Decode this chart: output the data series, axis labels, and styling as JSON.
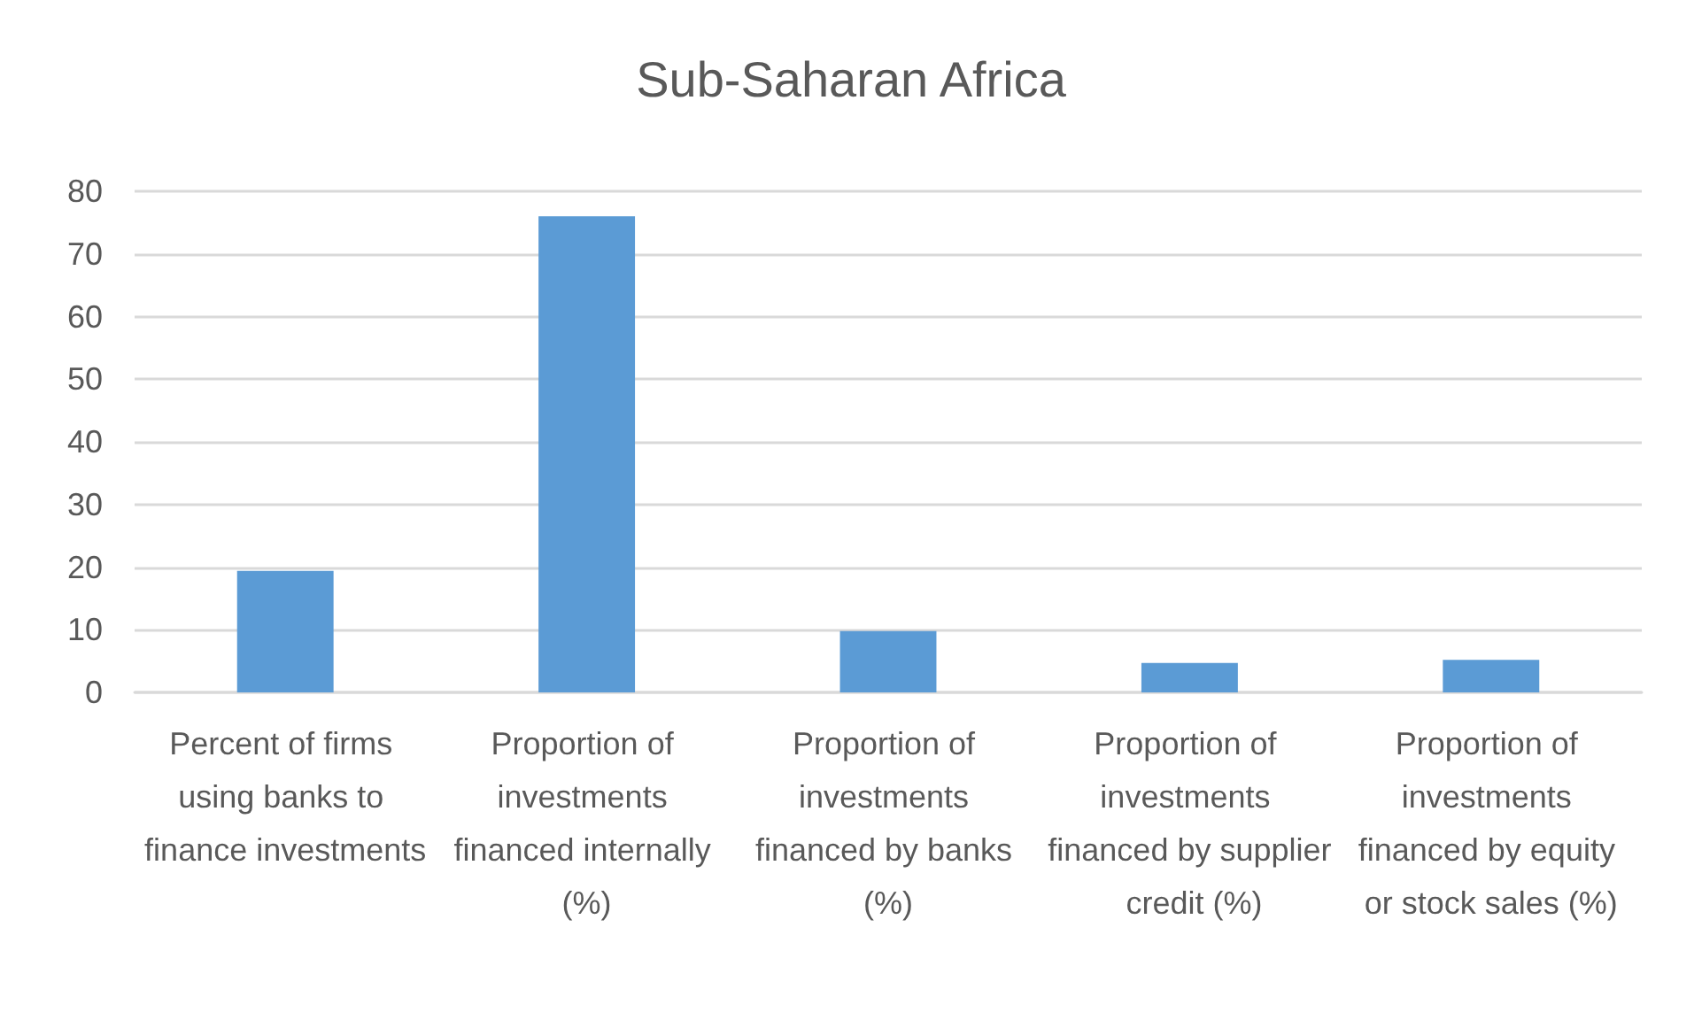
{
  "chart_data": {
    "type": "bar",
    "title": "Sub-Saharan Africa",
    "categories": [
      "Percent of firms using banks to finance investments",
      "Proportion of investments financed internally (%)",
      "Proportion of investments financed by banks (%)",
      "Proportion of investments financed by supplier credit (%)",
      "Proportion of investments financed by equity or stock sales (%)"
    ],
    "values": [
      19.4,
      76.0,
      9.8,
      4.7,
      5.2
    ],
    "color": "#5b9bd5",
    "ylim": [
      0,
      80
    ],
    "yticks": [
      0,
      10,
      20,
      30,
      40,
      50,
      60,
      70,
      80
    ],
    "grid": "y"
  }
}
